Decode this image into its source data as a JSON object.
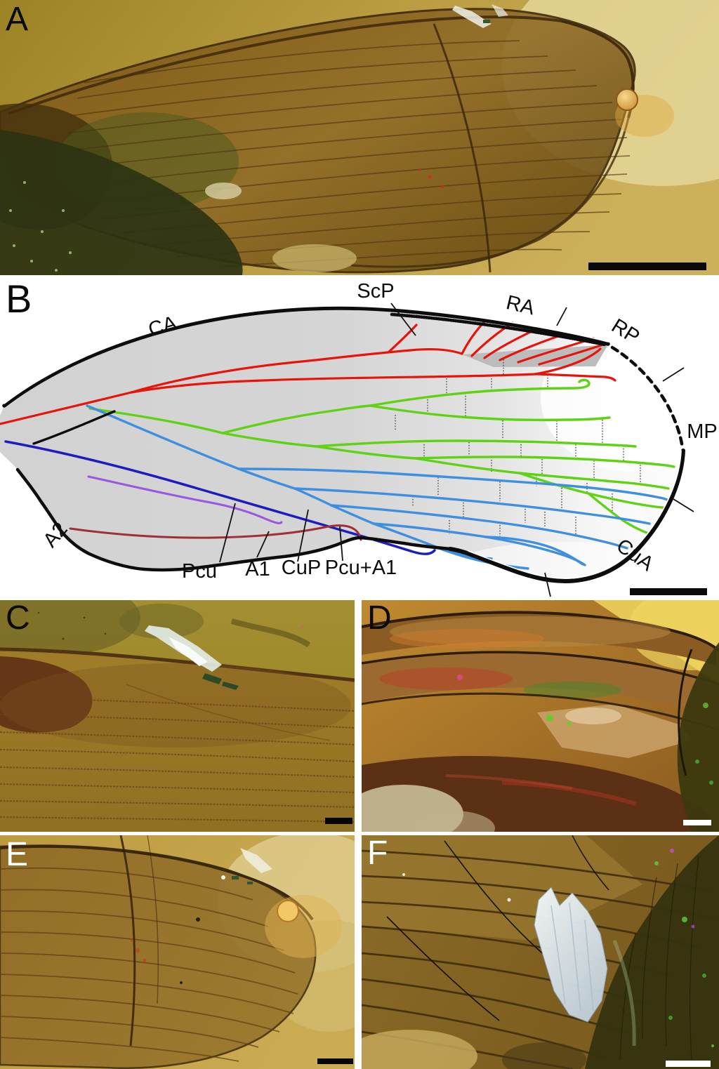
{
  "panels": {
    "A": {
      "letter": "A"
    },
    "B": {
      "letter": "B"
    },
    "C": {
      "letter": "C"
    },
    "D": {
      "letter": "D"
    },
    "E": {
      "letter": "E"
    },
    "F": {
      "letter": "F"
    }
  },
  "panelB": {
    "labels": {
      "ScP": "ScP",
      "RA": "RA",
      "RP": "RP",
      "MP": "MP",
      "CuA": "CuA",
      "CA": "CA",
      "A2": "A2",
      "Pcu": "Pcu",
      "A1": "A1",
      "CuP": "CuP",
      "Pcu_A1": "Pcu+A1"
    },
    "crossveins": [
      [
        717,
        120,
        141
      ],
      [
        636,
        147,
        169
      ],
      [
        700,
        147,
        164
      ],
      [
        780,
        142,
        160
      ],
      [
        563,
        199,
        221
      ],
      [
        609,
        173,
        200
      ],
      [
        663,
        168,
        201
      ],
      [
        716,
        207,
        234
      ],
      [
        793,
        207,
        237
      ],
      [
        858,
        206,
        239
      ],
      [
        604,
        241,
        259
      ],
      [
        668,
        238,
        258
      ],
      [
        742,
        237,
        259
      ],
      [
        820,
        241,
        260
      ],
      [
        888,
        243,
        266
      ],
      [
        700,
        263,
        280
      ],
      [
        772,
        262,
        285
      ],
      [
        846,
        264,
        295
      ],
      [
        912,
        270,
        297
      ],
      [
        764,
        285,
        301
      ],
      [
        836,
        296,
        312
      ],
      [
        624,
        288,
        315
      ],
      [
        712,
        294,
        322
      ],
      [
        800,
        303,
        335
      ],
      [
        872,
        311,
        341
      ],
      [
        660,
        320,
        346
      ],
      [
        748,
        329,
        353
      ],
      [
        588,
        315,
        330
      ],
      [
        640,
        349,
        369
      ],
      [
        712,
        352,
        372
      ],
      [
        776,
        337,
        358
      ],
      [
        820,
        344,
        369
      ]
    ],
    "pointer_lines": [
      [
        557,
        40,
        592,
        86
      ],
      [
        807,
        46,
        793,
        72
      ],
      [
        974,
        132,
        944,
        151
      ],
      [
        959,
        319,
        988,
        337
      ],
      [
        776,
        424,
        784,
        458
      ],
      [
        313,
        409,
        335,
        325
      ],
      [
        366,
        402,
        383,
        365
      ],
      [
        424,
        408,
        439,
        334
      ],
      [
        488,
        407,
        484,
        358
      ]
    ]
  },
  "colors": {
    "vein-red": "#e8140c",
    "vein-green": "#5fd214",
    "vein-blue": "#3f8fe0",
    "vein-navy": "#1c1cc0",
    "vein-purple": "#9a57e2",
    "vein-maroon": "#9e2f35",
    "wing-gray": "#d4d4d4",
    "amber-light": "#c7a84e",
    "amber-dark": "#8a6a28",
    "scalebar-dark": "#0a0a0a",
    "scalebar-light": "#ffffff"
  }
}
